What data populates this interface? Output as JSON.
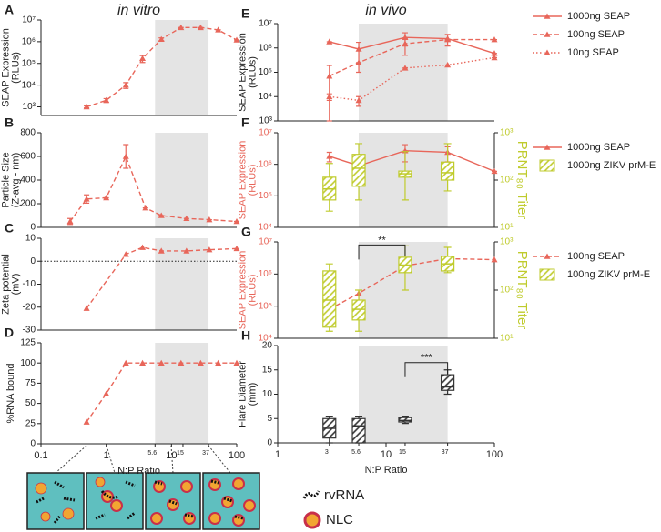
{
  "chart_data": [
    {
      "label": "A",
      "title": "in vitro",
      "type": "line",
      "ylabel": [
        "SEAP Expression",
        "(RLUs)"
      ],
      "xlim": [
        0.1,
        100
      ],
      "xlog": true,
      "ylog": true,
      "ylim": [
        400,
        10000000
      ],
      "yticks": [
        {
          "value": 1000,
          "label": "10³"
        },
        {
          "value": 10000,
          "label": "10⁴"
        },
        {
          "value": 100000,
          "label": "10⁵"
        },
        {
          "value": 1000000,
          "label": "10⁶"
        },
        {
          "value": 10000000,
          "label": "10⁷"
        }
      ],
      "shade": [
        5.6,
        37
      ],
      "series": [
        {
          "color": "#e8665a",
          "dash": "dashed",
          "marker": "triangle",
          "x": [
            0.5,
            1,
            2,
            3.6,
            7,
            14,
            28,
            52,
            100
          ],
          "values": [
            1000,
            2000,
            10000,
            170000,
            1300000,
            4500000,
            4500000,
            3500000,
            1200000
          ],
          "errors": [
            100,
            400,
            3000,
            60000,
            200000,
            0,
            0,
            0,
            0
          ]
        }
      ]
    },
    {
      "label": "B",
      "type": "line",
      "ylabel": [
        "Particle Size",
        "(Z-avg - nm)"
      ],
      "xlim": [
        0.1,
        100
      ],
      "xlog": true,
      "ylim": [
        0,
        800
      ],
      "yticks": [
        0,
        200,
        400,
        600,
        800
      ],
      "shade": [
        5.6,
        37
      ],
      "series": [
        {
          "color": "#e8665a",
          "dash": "dashed",
          "marker": "triangle",
          "x": [
            0.28,
            0.5,
            1,
            2,
            4,
            7,
            17,
            38,
            100
          ],
          "values": [
            50,
            240,
            250,
            600,
            165,
            100,
            75,
            65,
            50
          ],
          "errors": [
            25,
            35,
            0,
            100,
            0,
            0,
            0,
            0,
            0
          ]
        }
      ]
    },
    {
      "label": "C",
      "type": "line",
      "ylabel": [
        "Zeta potential",
        "(mV)"
      ],
      "xlim": [
        0.1,
        100
      ],
      "xlog": true,
      "ylim": [
        -30,
        10
      ],
      "yticks": [
        -30,
        -20,
        -10,
        0,
        10
      ],
      "shade": [
        5.6,
        37
      ],
      "refline": 0,
      "series": [
        {
          "color": "#e8665a",
          "dash": "dashed",
          "marker": "triangle",
          "x": [
            0.5,
            2,
            3.6,
            7,
            17,
            38,
            100
          ],
          "values": [
            -20.5,
            3,
            6,
            4.5,
            4.5,
            5,
            5.5
          ]
        }
      ]
    },
    {
      "label": "D",
      "type": "line",
      "ylabel": [
        "%RNA bound"
      ],
      "xlabel": "N:P Ratio",
      "xlim": [
        0.1,
        100
      ],
      "xlog": true,
      "xticks": [
        0.1,
        1,
        10,
        100
      ],
      "xsubticks": [
        5.6,
        15,
        37
      ],
      "ylim": [
        0,
        125
      ],
      "yticks": [
        0,
        25,
        50,
        75,
        100,
        125
      ],
      "shade": [
        5.6,
        37
      ],
      "series": [
        {
          "color": "#e8665a",
          "dash": "dashed",
          "marker": "triangle",
          "x": [
            0.5,
            1,
            2,
            3.6,
            7,
            14,
            28,
            52,
            100
          ],
          "values": [
            27,
            62,
            100,
            100,
            100,
            100,
            100,
            100,
            100
          ]
        }
      ]
    },
    {
      "label": "E",
      "title": "in vivo",
      "type": "line",
      "ylabel": [
        "SEAP Expression",
        "(RLUs)"
      ],
      "xlim": [
        1,
        100
      ],
      "xlog": true,
      "ylog": true,
      "ylim": [
        1000,
        10000000
      ],
      "yticks": [
        {
          "value": 1000,
          "label": "10³"
        },
        {
          "value": 10000,
          "label": "10⁴"
        },
        {
          "value": 100000,
          "label": "10⁵"
        },
        {
          "value": 1000000,
          "label": "10⁶"
        },
        {
          "value": 10000000,
          "label": "10⁷"
        }
      ],
      "shade": [
        5.6,
        37
      ],
      "series": [
        {
          "name": "1000ng SEAP",
          "color": "#e8665a",
          "dash": "solid",
          "marker": "triangle",
          "x": [
            3,
            5.6,
            15,
            37,
            100
          ],
          "values": [
            1800000,
            900000,
            2700000,
            2400000,
            600000
          ],
          "errors": [
            0,
            800000,
            1500000,
            1200000,
            0
          ]
        },
        {
          "name": "100ng SEAP",
          "color": "#e8665a",
          "dash": "dashed",
          "marker": "triangle",
          "x": [
            3,
            5.6,
            15,
            37,
            100
          ],
          "values": [
            70000,
            250000,
            1500000,
            2200000,
            2200000
          ],
          "errors": [
            120000,
            0,
            1000000,
            0,
            0
          ]
        },
        {
          "name": "10ng SEAP",
          "color": "#e8665a",
          "dash": "dotted",
          "marker": "triangle",
          "x": [
            3,
            5.6,
            15,
            37,
            100
          ],
          "values": [
            10000,
            7000,
            150000,
            200000,
            400000
          ],
          "errors": [
            3000,
            3000,
            0,
            0,
            0
          ]
        }
      ]
    },
    {
      "label": "F",
      "type": "combo",
      "ylabel": [
        "SEAP Expression",
        "(RLUs)"
      ],
      "y2label": [
        "PRNT₈₀ Titer"
      ],
      "xlim": [
        1,
        100
      ],
      "xlog": true,
      "ylog": true,
      "ylim": [
        10000,
        10000000
      ],
      "yticks": [
        {
          "value": 10000,
          "label": "10⁴"
        },
        {
          "value": 100000,
          "label": "10⁵"
        },
        {
          "value": 1000000,
          "label": "10⁶"
        },
        {
          "value": 10000000,
          "label": "10⁷"
        }
      ],
      "y2log": true,
      "y2lim": [
        10,
        1000
      ],
      "y2ticks": [
        {
          "value": 10,
          "label": "10¹"
        },
        {
          "value": 100,
          "label": "10²"
        },
        {
          "value": 1000,
          "label": "10³"
        }
      ],
      "shade": [
        5.6,
        37
      ],
      "series": [
        {
          "name": "1000ng SEAP",
          "color": "#e8665a",
          "dash": "solid",
          "marker": "triangle",
          "x": [
            3,
            5.6,
            15,
            37,
            100
          ],
          "values": [
            1800000,
            900000,
            2700000,
            2400000,
            600000
          ],
          "errors": [
            600000,
            0,
            1500000,
            1200000,
            0
          ]
        },
        {
          "name": "1000ng ZIKV prM-E",
          "color": "#bfcb2c",
          "axis": "y2",
          "x": [
            3,
            5.6,
            15,
            37
          ],
          "min": [
            22,
            38,
            38,
            59
          ],
          "q1": [
            38,
            74,
            115,
            100
          ],
          "median": [
            65,
            178,
            136,
            143
          ],
          "q3": [
            115,
            350,
            155,
            240
          ],
          "max": [
            224,
            590,
            400,
            590
          ]
        }
      ]
    },
    {
      "label": "G",
      "type": "combo",
      "ylabel": [
        "SEAP Expression",
        "(RLUs)"
      ],
      "y2label": [
        "PRNT₈₀ Titer"
      ],
      "xlim": [
        1,
        100
      ],
      "xlog": true,
      "ylog": true,
      "ylim": [
        10000,
        10000000
      ],
      "yticks": [
        {
          "value": 10000,
          "label": "10⁴"
        },
        {
          "value": 100000,
          "label": "10⁵"
        },
        {
          "value": 1000000,
          "label": "10⁶"
        },
        {
          "value": 10000000,
          "label": "10⁷"
        }
      ],
      "y2log": true,
      "y2lim": [
        10,
        1000
      ],
      "y2ticks": [
        {
          "value": 10,
          "label": "10¹"
        },
        {
          "value": 100,
          "label": "10²"
        },
        {
          "value": 1000,
          "label": "10³"
        }
      ],
      "shade": [
        5.6,
        37
      ],
      "annotations": [
        {
          "text": "**",
          "x": [
            5.6,
            15
          ],
          "y": 8000000
        }
      ],
      "series": [
        {
          "name": "100ng SEAP",
          "color": "#e8665a",
          "dash": "dashed",
          "marker": "triangle",
          "x": [
            3,
            5.6,
            15,
            37,
            100
          ],
          "values": [
            80000,
            250000,
            1800000,
            3000000,
            2800000
          ]
        },
        {
          "name": "100ng ZIKV prM-E",
          "color": "#bfcb2c",
          "axis": "y2",
          "x": [
            3,
            5.6,
            15,
            37
          ],
          "min": [
            14,
            14,
            100,
            230
          ],
          "q1": [
            17,
            24,
            230,
            250
          ],
          "median": [
            62,
            40,
            330,
            350
          ],
          "q3": [
            250,
            62,
            480,
            500
          ],
          "max": [
            350,
            100,
            830,
            770
          ]
        }
      ]
    },
    {
      "label": "H",
      "type": "box",
      "ylabel": [
        "Flare Diameter",
        "(mm)"
      ],
      "xlabel": "N:P Ratio",
      "xlim": [
        1,
        100
      ],
      "xlog": true,
      "xticks": [
        1,
        10,
        100
      ],
      "xsubticks": [
        3,
        5.6,
        15,
        37
      ],
      "ylim": [
        0,
        20
      ],
      "yticks": [
        0,
        5,
        10,
        15,
        20
      ],
      "shade": [
        5.6,
        37
      ],
      "annotations": [
        {
          "text": "***",
          "x": [
            15,
            37
          ],
          "y": 16.5
        }
      ],
      "series": [
        {
          "color": "#333333",
          "x": [
            3,
            5.6,
            15,
            37
          ],
          "min": [
            0,
            0,
            4,
            10
          ],
          "q1": [
            1,
            0,
            4.3,
            10.8
          ],
          "median": [
            3,
            3.5,
            4.6,
            11.5
          ],
          "q3": [
            5,
            5,
            5.2,
            14
          ],
          "max": [
            5.5,
            5.5,
            5.5,
            15
          ]
        }
      ]
    }
  ],
  "illustration": {
    "legend": [
      "rvRNA",
      "NLC"
    ]
  }
}
